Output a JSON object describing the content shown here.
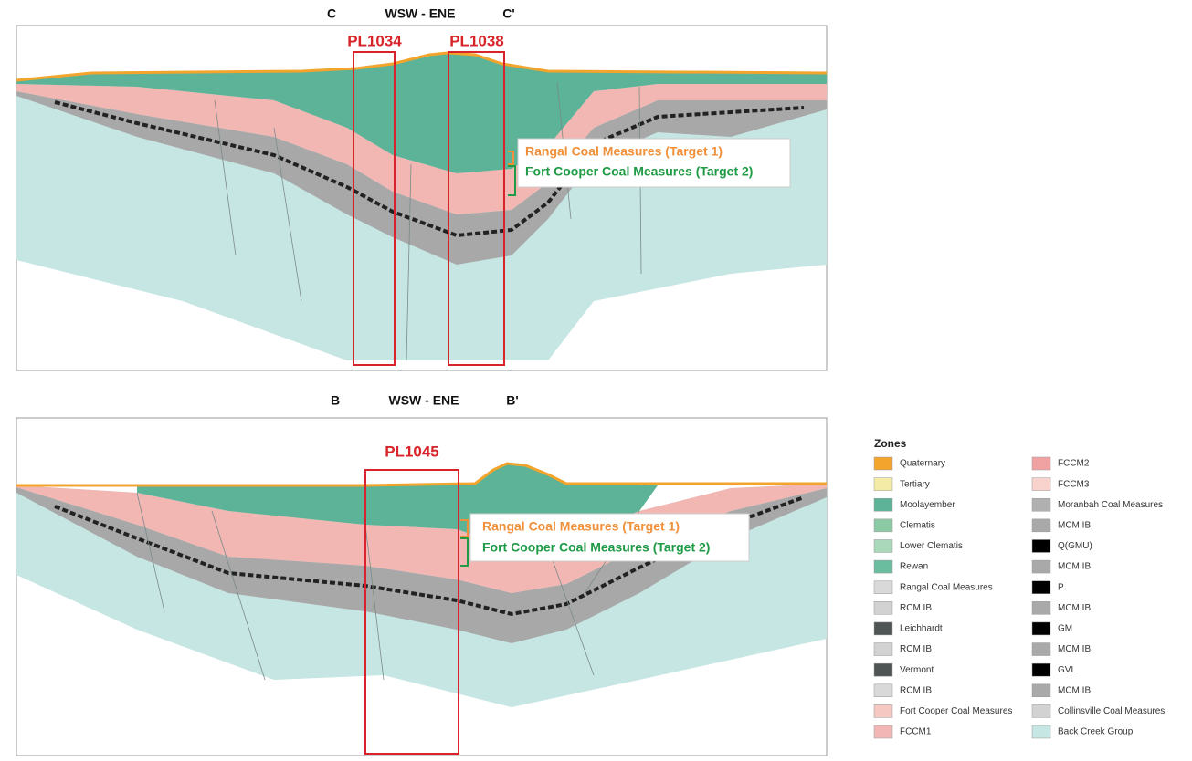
{
  "sections": [
    {
      "left_label": "C",
      "title": "WSW - ENE",
      "right_label": "C'",
      "boxes": [
        "PL1034",
        "PL1038"
      ],
      "callouts": [
        "Rangal Coal Measures (Target 1)",
        "Fort Cooper Coal Measures (Target 2)"
      ]
    },
    {
      "left_label": "B",
      "title": "WSW - ENE",
      "right_label": "B'",
      "boxes": [
        "PL1045"
      ],
      "callouts": [
        "Rangal Coal Measures (Target 1)",
        "Fort Cooper Coal Measures (Target 2)"
      ]
    }
  ],
  "legend": {
    "title": "Zones",
    "items": [
      {
        "label": "Quaternary",
        "color": "#f2a42c"
      },
      {
        "label": "Tertiary",
        "color": "#f4eca6"
      },
      {
        "label": "Moolayember",
        "color": "#5cb397"
      },
      {
        "label": "Clematis",
        "color": "#8ccaa6"
      },
      {
        "label": "Lower Clematis",
        "color": "#a9d9ba"
      },
      {
        "label": "Rewan",
        "color": "#6bbd9f"
      },
      {
        "label": "Rangal Coal Measures",
        "color": "#d9d9d9"
      },
      {
        "label": "RCM IB",
        "color": "#d2d2d2"
      },
      {
        "label": "Leichhardt",
        "color": "#4f5454"
      },
      {
        "label": "RCM IB",
        "color": "#d2d2d2"
      },
      {
        "label": "Vermont",
        "color": "#4f5454"
      },
      {
        "label": "RCM IB",
        "color": "#d9d9d9"
      },
      {
        "label": "Fort Cooper Coal Measures",
        "color": "#f6c8c2"
      },
      {
        "label": "FCCM1",
        "color": "#f2b7b4"
      },
      {
        "label": "FCCM2",
        "color": "#f0a1a1"
      },
      {
        "label": "FCCM3",
        "color": "#f8d2cd"
      },
      {
        "label": "Moranbah Coal Measures",
        "color": "#b0b0b0"
      },
      {
        "label": "MCM IB",
        "color": "#a9a9a9"
      },
      {
        "label": "Q(GMU)",
        "color": "#000000"
      },
      {
        "label": "MCM IB",
        "color": "#a9a9a9"
      },
      {
        "label": "P",
        "color": "#000000"
      },
      {
        "label": "MCM IB",
        "color": "#a9a9a9"
      },
      {
        "label": "GM",
        "color": "#000000"
      },
      {
        "label": "MCM IB",
        "color": "#a9a9a9"
      },
      {
        "label": "GVL",
        "color": "#000000"
      },
      {
        "label": "MCM IB",
        "color": "#a9a9a9"
      },
      {
        "label": "Collinsville Coal Measures",
        "color": "#d2d2d2"
      },
      {
        "label": "Back Creek Group",
        "color": "#c6e6e3"
      }
    ]
  }
}
